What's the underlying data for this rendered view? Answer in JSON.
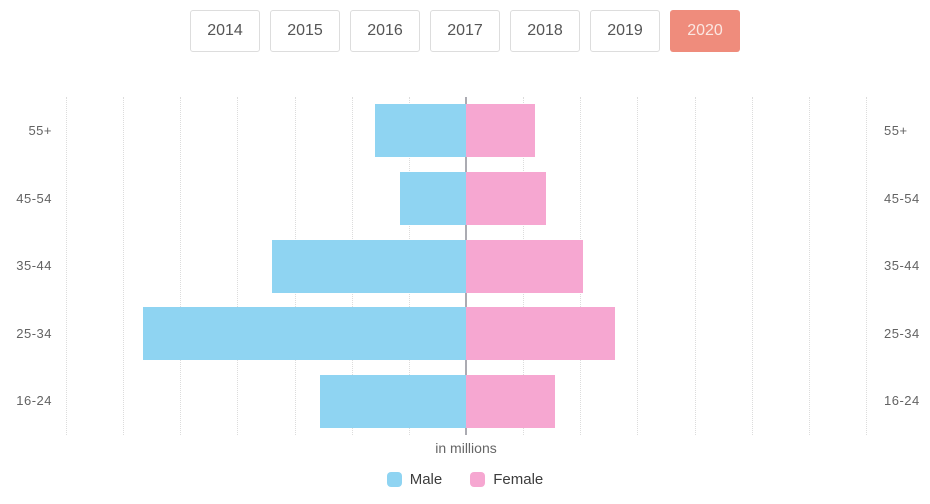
{
  "tabs": {
    "years": [
      "2014",
      "2015",
      "2016",
      "2017",
      "2018",
      "2019",
      "2020"
    ],
    "selected": "2020"
  },
  "chart_data": {
    "type": "bar",
    "subtype": "population-pyramid-horizontal",
    "categories": [
      "55+",
      "45-54",
      "35-44",
      "25-34",
      "16-24"
    ],
    "series": [
      {
        "name": "Male",
        "color": "#8fd4f2",
        "values": [
          1.6,
          1.15,
          3.4,
          5.65,
          2.55
        ]
      },
      {
        "name": "Female",
        "color": "#f6a7d1",
        "values": [
          1.2,
          1.4,
          2.05,
          2.6,
          1.55
        ]
      }
    ],
    "caption": "in millions",
    "legend": [
      "Male",
      "Female"
    ],
    "legend_position": "bottom-center",
    "grid": true,
    "x_unit_per_gridline": 1,
    "x_max_per_side": 7,
    "values_note": "values estimated from gridlines, axis labeled only as 'in millions'"
  },
  "colors": {
    "selected_tab_bg": "#ef8c7c",
    "selected_tab_text": "#fbe7e2",
    "tab_border": "#dddddd",
    "tab_text": "#555555",
    "grid_line": "#dcdcdc",
    "center_axis": "#ababb2",
    "label_text": "#636363",
    "legend_text": "#3d3d3d"
  }
}
